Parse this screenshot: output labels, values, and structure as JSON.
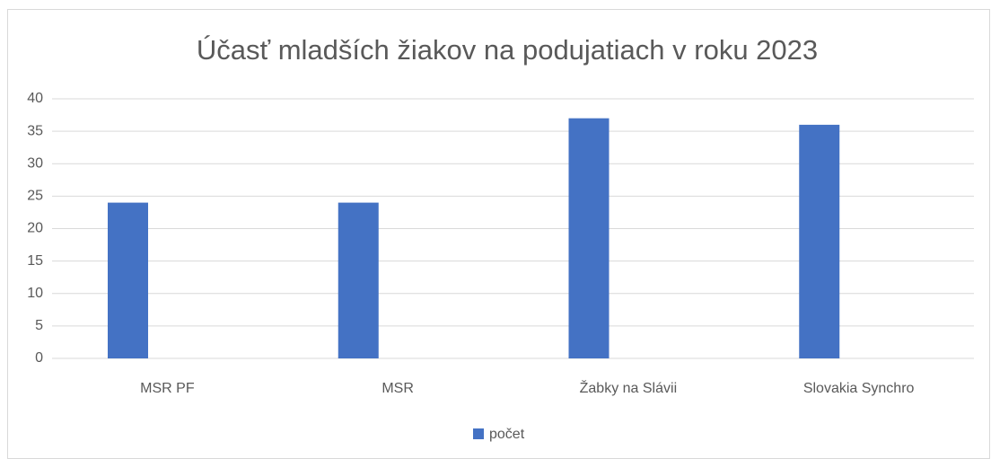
{
  "chart_data": {
    "type": "bar",
    "title": "Účasť mladších žiakov na podujatiach v roku 2023",
    "categories": [
      "MSR PF",
      "MSR",
      "Žabky na Slávii",
      "Slovakia Synchro"
    ],
    "series": [
      {
        "name": "počet",
        "color": "#4472c4",
        "values": [
          24,
          24,
          37,
          36
        ]
      }
    ],
    "ylim": [
      0,
      40
    ],
    "yticks": [
      0,
      5,
      10,
      15,
      20,
      25,
      30,
      35,
      40
    ],
    "grid": true,
    "legend": "bottom"
  }
}
